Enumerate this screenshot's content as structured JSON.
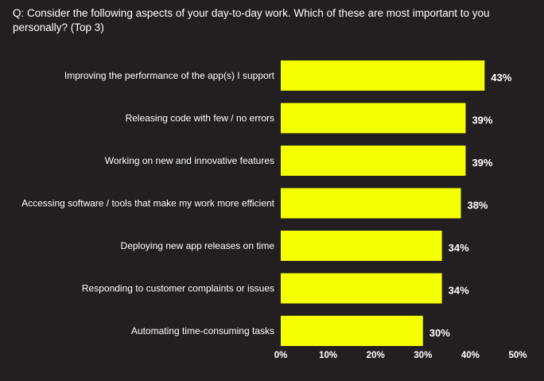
{
  "chart_data": {
    "type": "bar",
    "orientation": "horizontal",
    "title": "Q: Consider the following aspects of your day-to-day work. Which of these are most important  to you personally? (Top 3)",
    "categories": [
      "Improving the performance of the app(s) I support",
      "Releasing code with few / no errors",
      "Working on new and innovative features",
      "Accessing software / tools that make my work more efficient",
      "Deploying new app releases on time",
      "Responding to customer complaints or issues",
      "Automating time-consuming tasks"
    ],
    "values": [
      43,
      39,
      39,
      38,
      34,
      34,
      30
    ],
    "value_labels": [
      "43%",
      "39%",
      "39%",
      "38%",
      "34%",
      "34%",
      "30%"
    ],
    "xlim": [
      0,
      50
    ],
    "x_ticks": [
      0,
      10,
      20,
      30,
      40,
      50
    ],
    "x_tick_labels": [
      "0%",
      "10%",
      "20%",
      "30%",
      "40%",
      "50%"
    ],
    "xlabel": "",
    "ylabel": "",
    "grid": false,
    "legend": "none",
    "colors": {
      "background": "#231f20",
      "bar": "#f4ff00",
      "text": "#ffffff"
    }
  }
}
